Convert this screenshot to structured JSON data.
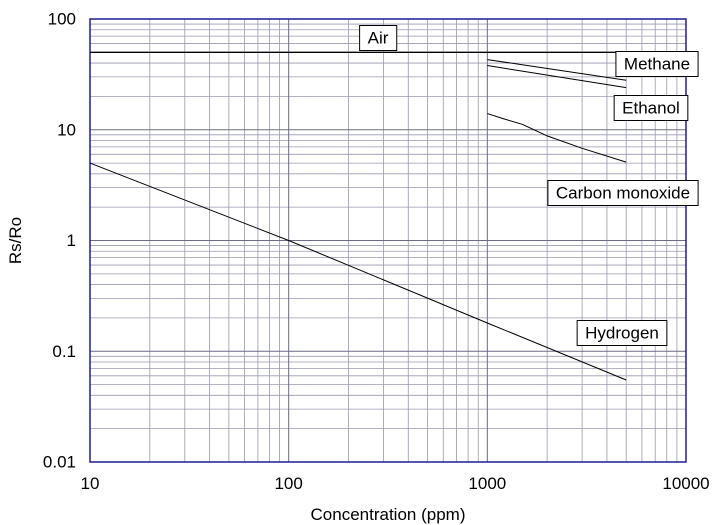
{
  "chart_data": {
    "type": "line",
    "title": "",
    "xlabel": "Concentration (ppm)",
    "ylabel": "Rs/Ro",
    "x_scale": "log",
    "y_scale": "log",
    "xlim": [
      10,
      10000
    ],
    "ylim": [
      0.01,
      100
    ],
    "grid": true,
    "x_ticks": [
      "10",
      "100",
      "1000",
      "10000"
    ],
    "y_ticks": [
      "0.01",
      "0.1",
      "1",
      "10",
      "100"
    ],
    "series": [
      {
        "name": "Air",
        "x": [
          10,
          10000
        ],
        "y": [
          50,
          50
        ]
      },
      {
        "name": "Methane",
        "x": [
          1000,
          5000
        ],
        "y": [
          43,
          28
        ]
      },
      {
        "name": "Ethanol",
        "x": [
          1000,
          5000
        ],
        "y": [
          38,
          24
        ]
      },
      {
        "name": "Carbon monoxide",
        "x": [
          1000,
          1200,
          1500,
          2000,
          3000,
          5000
        ],
        "y": [
          14,
          12.6,
          11.2,
          8.8,
          6.8,
          5.1
        ]
      },
      {
        "name": "Hydrogen",
        "x": [
          10,
          100,
          1000,
          5000
        ],
        "y": [
          5,
          1,
          0.18,
          0.055
        ]
      }
    ]
  },
  "colors": {
    "grid_major": "#6b6b8c",
    "grid_minor": "#9a9ab3",
    "frame": "#1f1f99",
    "line": "#000000"
  }
}
